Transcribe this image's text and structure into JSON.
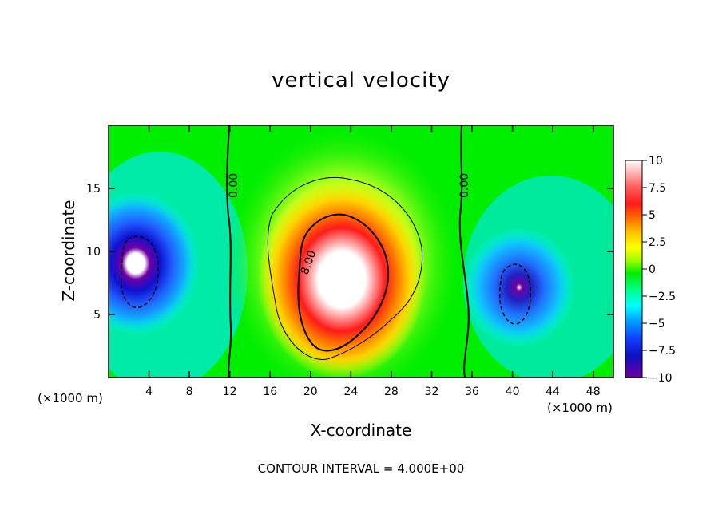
{
  "chart_data": {
    "type": "heatmap",
    "title": "vertical velocity",
    "xlabel": "X-coordinate",
    "ylabel": "Z-coordinate",
    "x_unit_label": "(×1000 m)",
    "xlim": [
      0,
      50
    ],
    "ylim": [
      0,
      20
    ],
    "xticks": [
      4,
      8,
      12,
      16,
      20,
      24,
      28,
      32,
      36,
      40,
      44,
      48
    ],
    "yticks": [
      5,
      10,
      15
    ],
    "colorbar": {
      "ticks": [
        10,
        7.5,
        5,
        2.5,
        0,
        -2.5,
        -5,
        -7.5,
        -10
      ],
      "tick_labels": [
        "10",
        "7.5",
        "5",
        "2.5",
        "0",
        "−2.5",
        "−5",
        "−7.5",
        "−10"
      ],
      "range": [
        -10,
        10
      ]
    },
    "contour_labels": [
      "0.00",
      "8.00",
      "0.00"
    ],
    "contour_interval_text": "CONTOUR INTERVAL = 4.000E+00",
    "features": [
      {
        "kind": "updraft",
        "x": 23,
        "z": 7,
        "peak": 12
      },
      {
        "kind": "downdraft",
        "x": 3,
        "z": 8,
        "peak": -12
      },
      {
        "kind": "downdraft",
        "x": 40.5,
        "z": 7,
        "peak": -11
      }
    ],
    "colors": {
      "high": "#ffffff",
      "red": "#ff1a1a",
      "orange": "#ffa500",
      "yellow": "#ffff00",
      "green": "#00ee00",
      "cyan": "#00ffff",
      "blue": "#0000ff",
      "purple": "#7000a0"
    }
  }
}
